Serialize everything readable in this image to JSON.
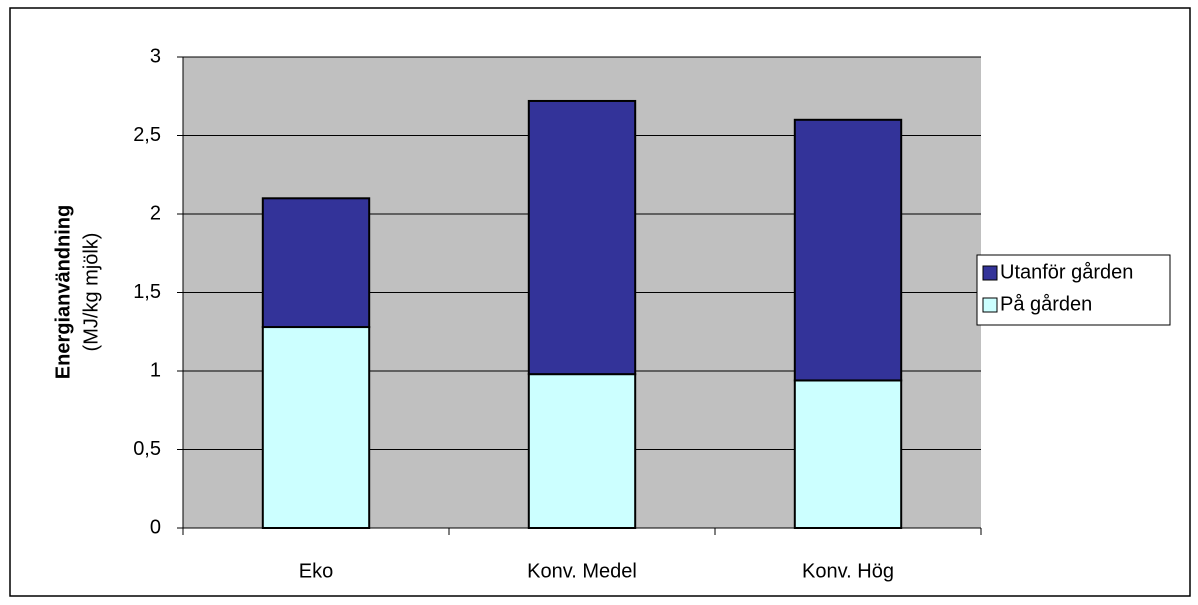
{
  "chart_data": {
    "type": "stacked_bar",
    "ylabel": "Energianvändning",
    "ylabel_sub": "(MJ/kg mjölk)",
    "categories": [
      "Eko",
      "Konv. Medel",
      "Konv. Hög"
    ],
    "series": [
      {
        "name": "På gården",
        "color": "#ccffff",
        "values": [
          1.28,
          0.98,
          0.94
        ]
      },
      {
        "name": "Utanför gården",
        "color": "#333399",
        "values": [
          0.82,
          1.74,
          1.66
        ]
      }
    ],
    "ylim": [
      0,
      3
    ],
    "yticks": [
      0,
      {
        "value": 0.5,
        "label": "0,5"
      },
      1,
      {
        "value": 1.5,
        "label": "1,5"
      },
      2,
      {
        "value": 2.5,
        "label": "2,5"
      },
      3
    ],
    "grid": true,
    "legend": "right"
  }
}
